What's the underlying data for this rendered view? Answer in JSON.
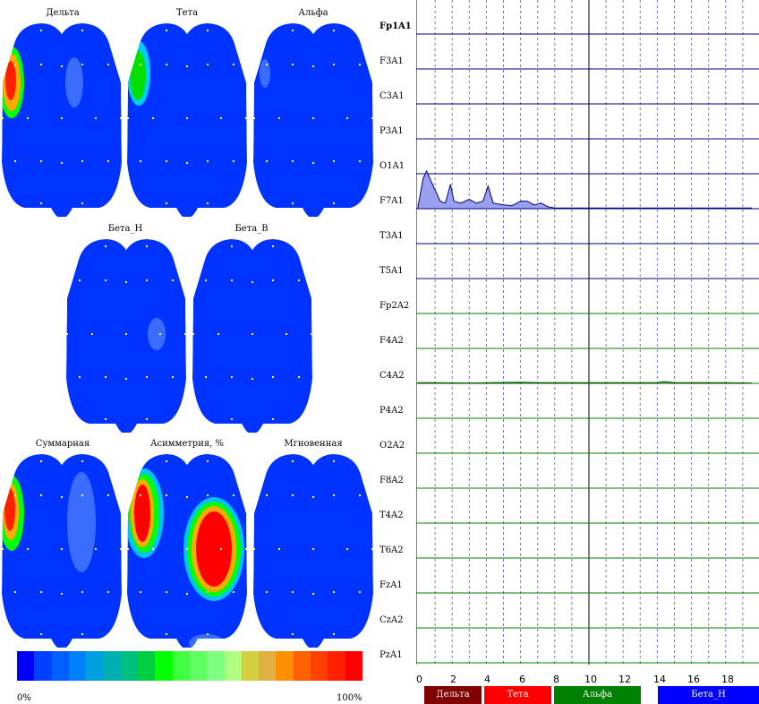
{
  "maps": {
    "delta": "Дельта",
    "theta": "Тета",
    "alpha": "Альфа",
    "beta_low": "Бета_Н",
    "beta_high": "Бета_В",
    "summary": "Суммарная",
    "asymmetry": "Асимметрия, %",
    "instant": "Мгновенная"
  },
  "scale": {
    "min_label": "0%",
    "max_label": "100%",
    "colors": [
      "#0000ff",
      "#0040ff",
      "#0060ff",
      "#0080ff",
      "#00a0e0",
      "#00b0b0",
      "#00c080",
      "#00d040",
      "#00ff00",
      "#40ff40",
      "#60ff60",
      "#80ff80",
      "#b0ff80",
      "#d0d040",
      "#e0b040",
      "#ff9000",
      "#ff6000",
      "#ff4000",
      "#ff2000",
      "#ff0000"
    ]
  },
  "channels": {
    "c0": "Fp1A1",
    "c1": "F3A1",
    "c2": "C3A1",
    "c3": "P3A1",
    "c4": "O1A1",
    "c5": "F7A1",
    "c6": "T3A1",
    "c7": "T5A1",
    "c8": "Fp2A2",
    "c9": "F4A2",
    "c10": "C4A2",
    "c11": "P4A2",
    "c12": "O2A2",
    "c13": "F8A2",
    "c14": "T4A2",
    "c15": "T6A2",
    "c16": "FzA1",
    "c17": "CzA2",
    "c18": "PzA1"
  },
  "axis": {
    "t0": "0",
    "t2": "2",
    "t4": "4",
    "t6": "6",
    "t8": "8",
    "t10": "10",
    "t12": "12",
    "t14": "14",
    "t16": "16",
    "t18": "18"
  },
  "bands": {
    "delta": "Дельта",
    "theta": "Тета",
    "alpha": "Альфа",
    "beta_n": "Бета_Н"
  },
  "colors": {
    "map_background": "#0033ff",
    "band_delta": "#800000",
    "band_theta": "#ff0000",
    "band_alpha": "#008000",
    "band_beta": "#0000ff",
    "left_channel_line": "#000080",
    "right_channel_line": "#008000"
  },
  "spectrum_f7a1": [
    [
      0,
      0.05
    ],
    [
      0.3,
      0.8
    ],
    [
      0.5,
      1.0
    ],
    [
      0.9,
      0.6
    ],
    [
      1.3,
      0.2
    ],
    [
      1.6,
      0.15
    ],
    [
      1.9,
      0.65
    ],
    [
      2.1,
      0.2
    ],
    [
      2.5,
      0.15
    ],
    [
      3.0,
      0.25
    ],
    [
      3.4,
      0.15
    ],
    [
      3.8,
      0.2
    ],
    [
      4.1,
      0.6
    ],
    [
      4.4,
      0.15
    ],
    [
      5,
      0.1
    ],
    [
      5.5,
      0.08
    ],
    [
      6,
      0.2
    ],
    [
      6.4,
      0.2
    ],
    [
      6.8,
      0.1
    ],
    [
      7.2,
      0.15
    ],
    [
      7.6,
      0.05
    ],
    [
      8,
      0.02
    ],
    [
      10,
      0.02
    ],
    [
      12,
      0.02
    ],
    [
      14,
      0.02
    ],
    [
      16,
      0.02
    ],
    [
      18,
      0.02
    ],
    [
      19.5,
      0.02
    ]
  ],
  "spectrum_c4a2": [
    [
      0,
      0.02
    ],
    [
      1,
      0.02
    ],
    [
      3,
      0.01
    ],
    [
      6,
      0.03
    ],
    [
      7,
      0.02
    ],
    [
      10,
      0.02
    ],
    [
      14,
      0.02
    ],
    [
      14.4,
      0.05
    ],
    [
      15,
      0.02
    ],
    [
      18,
      0.02
    ],
    [
      19.5,
      0.01
    ]
  ]
}
